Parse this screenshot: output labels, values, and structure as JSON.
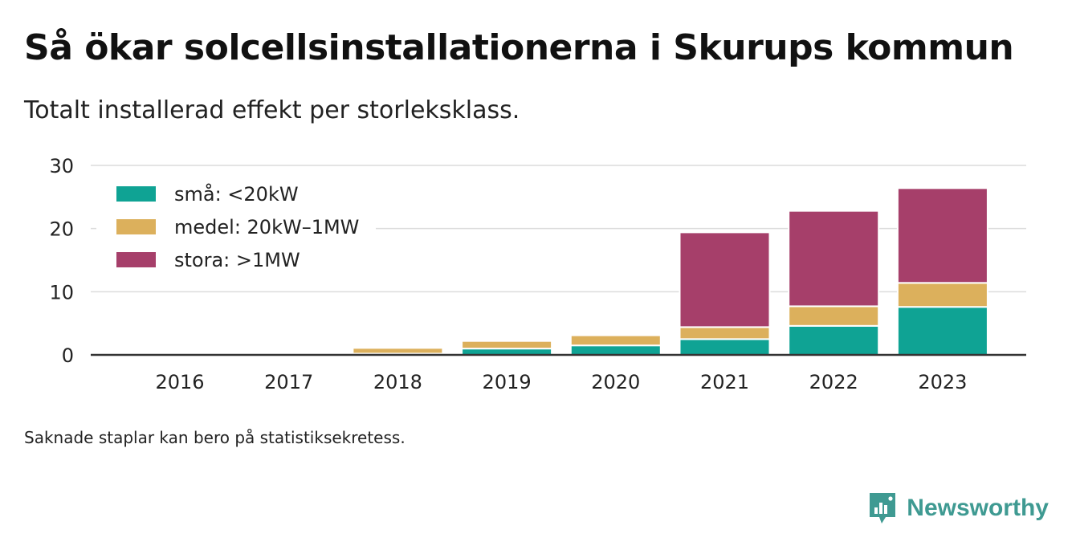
{
  "title": "Så ökar solcellsinstallationerna i Skurups kommun",
  "subtitle": "Totalt installerad effekt per storleksklass.",
  "footnote": "Saknade staplar kan bero på statistiksekretess.",
  "brand": "Newsworthy",
  "chart_data": {
    "type": "bar",
    "stacked": true,
    "categories": [
      "2016",
      "2017",
      "2018",
      "2019",
      "2020",
      "2021",
      "2022",
      "2023"
    ],
    "series": [
      {
        "name": "små: <20kW",
        "color": "#0fa394",
        "values": [
          0,
          0,
          0.2,
          1.0,
          1.5,
          2.5,
          4.6,
          7.6
        ]
      },
      {
        "name": "medel: 20kW–1MW",
        "color": "#dcb05c",
        "values": [
          0,
          0,
          0.9,
          1.2,
          1.6,
          1.9,
          3.1,
          3.8
        ]
      },
      {
        "name": "stora: >1MW",
        "color": "#a63f6a",
        "values": [
          0,
          0,
          0,
          0,
          0,
          15.0,
          15.1,
          15.0
        ]
      }
    ],
    "ylim": [
      0,
      30
    ],
    "yticks": [
      0,
      10,
      20,
      30
    ],
    "grid": true,
    "legend_position": "top-left"
  }
}
